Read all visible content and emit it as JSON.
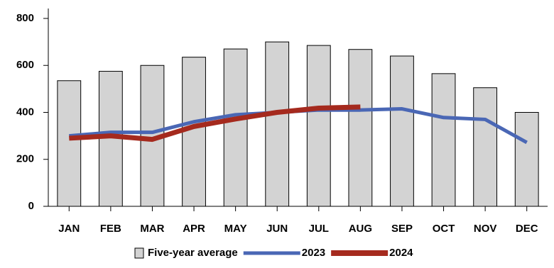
{
  "chart_data": {
    "type": "bar-line",
    "categories": [
      "JAN",
      "FEB",
      "MAR",
      "APR",
      "MAY",
      "JUN",
      "JUL",
      "AUG",
      "SEP",
      "OCT",
      "NOV",
      "DEC"
    ],
    "series": [
      {
        "name": "Five-year average",
        "type": "bar",
        "color": "#d3d3d3",
        "values": [
          535,
          575,
          600,
          635,
          670,
          700,
          685,
          668,
          640,
          565,
          505,
          400
        ]
      },
      {
        "name": "2023",
        "type": "line",
        "color": "#4a67b5",
        "values": [
          300,
          315,
          315,
          360,
          390,
          400,
          410,
          410,
          415,
          378,
          370,
          272
        ]
      },
      {
        "name": "2024",
        "type": "line",
        "color": "#a52a1e",
        "values": [
          290,
          300,
          285,
          340,
          372,
          400,
          418,
          423,
          null,
          null,
          null,
          null
        ]
      }
    ],
    "ylim": [
      0,
      800
    ],
    "yticks": [
      0,
      200,
      400,
      600,
      800
    ],
    "grid": false
  }
}
